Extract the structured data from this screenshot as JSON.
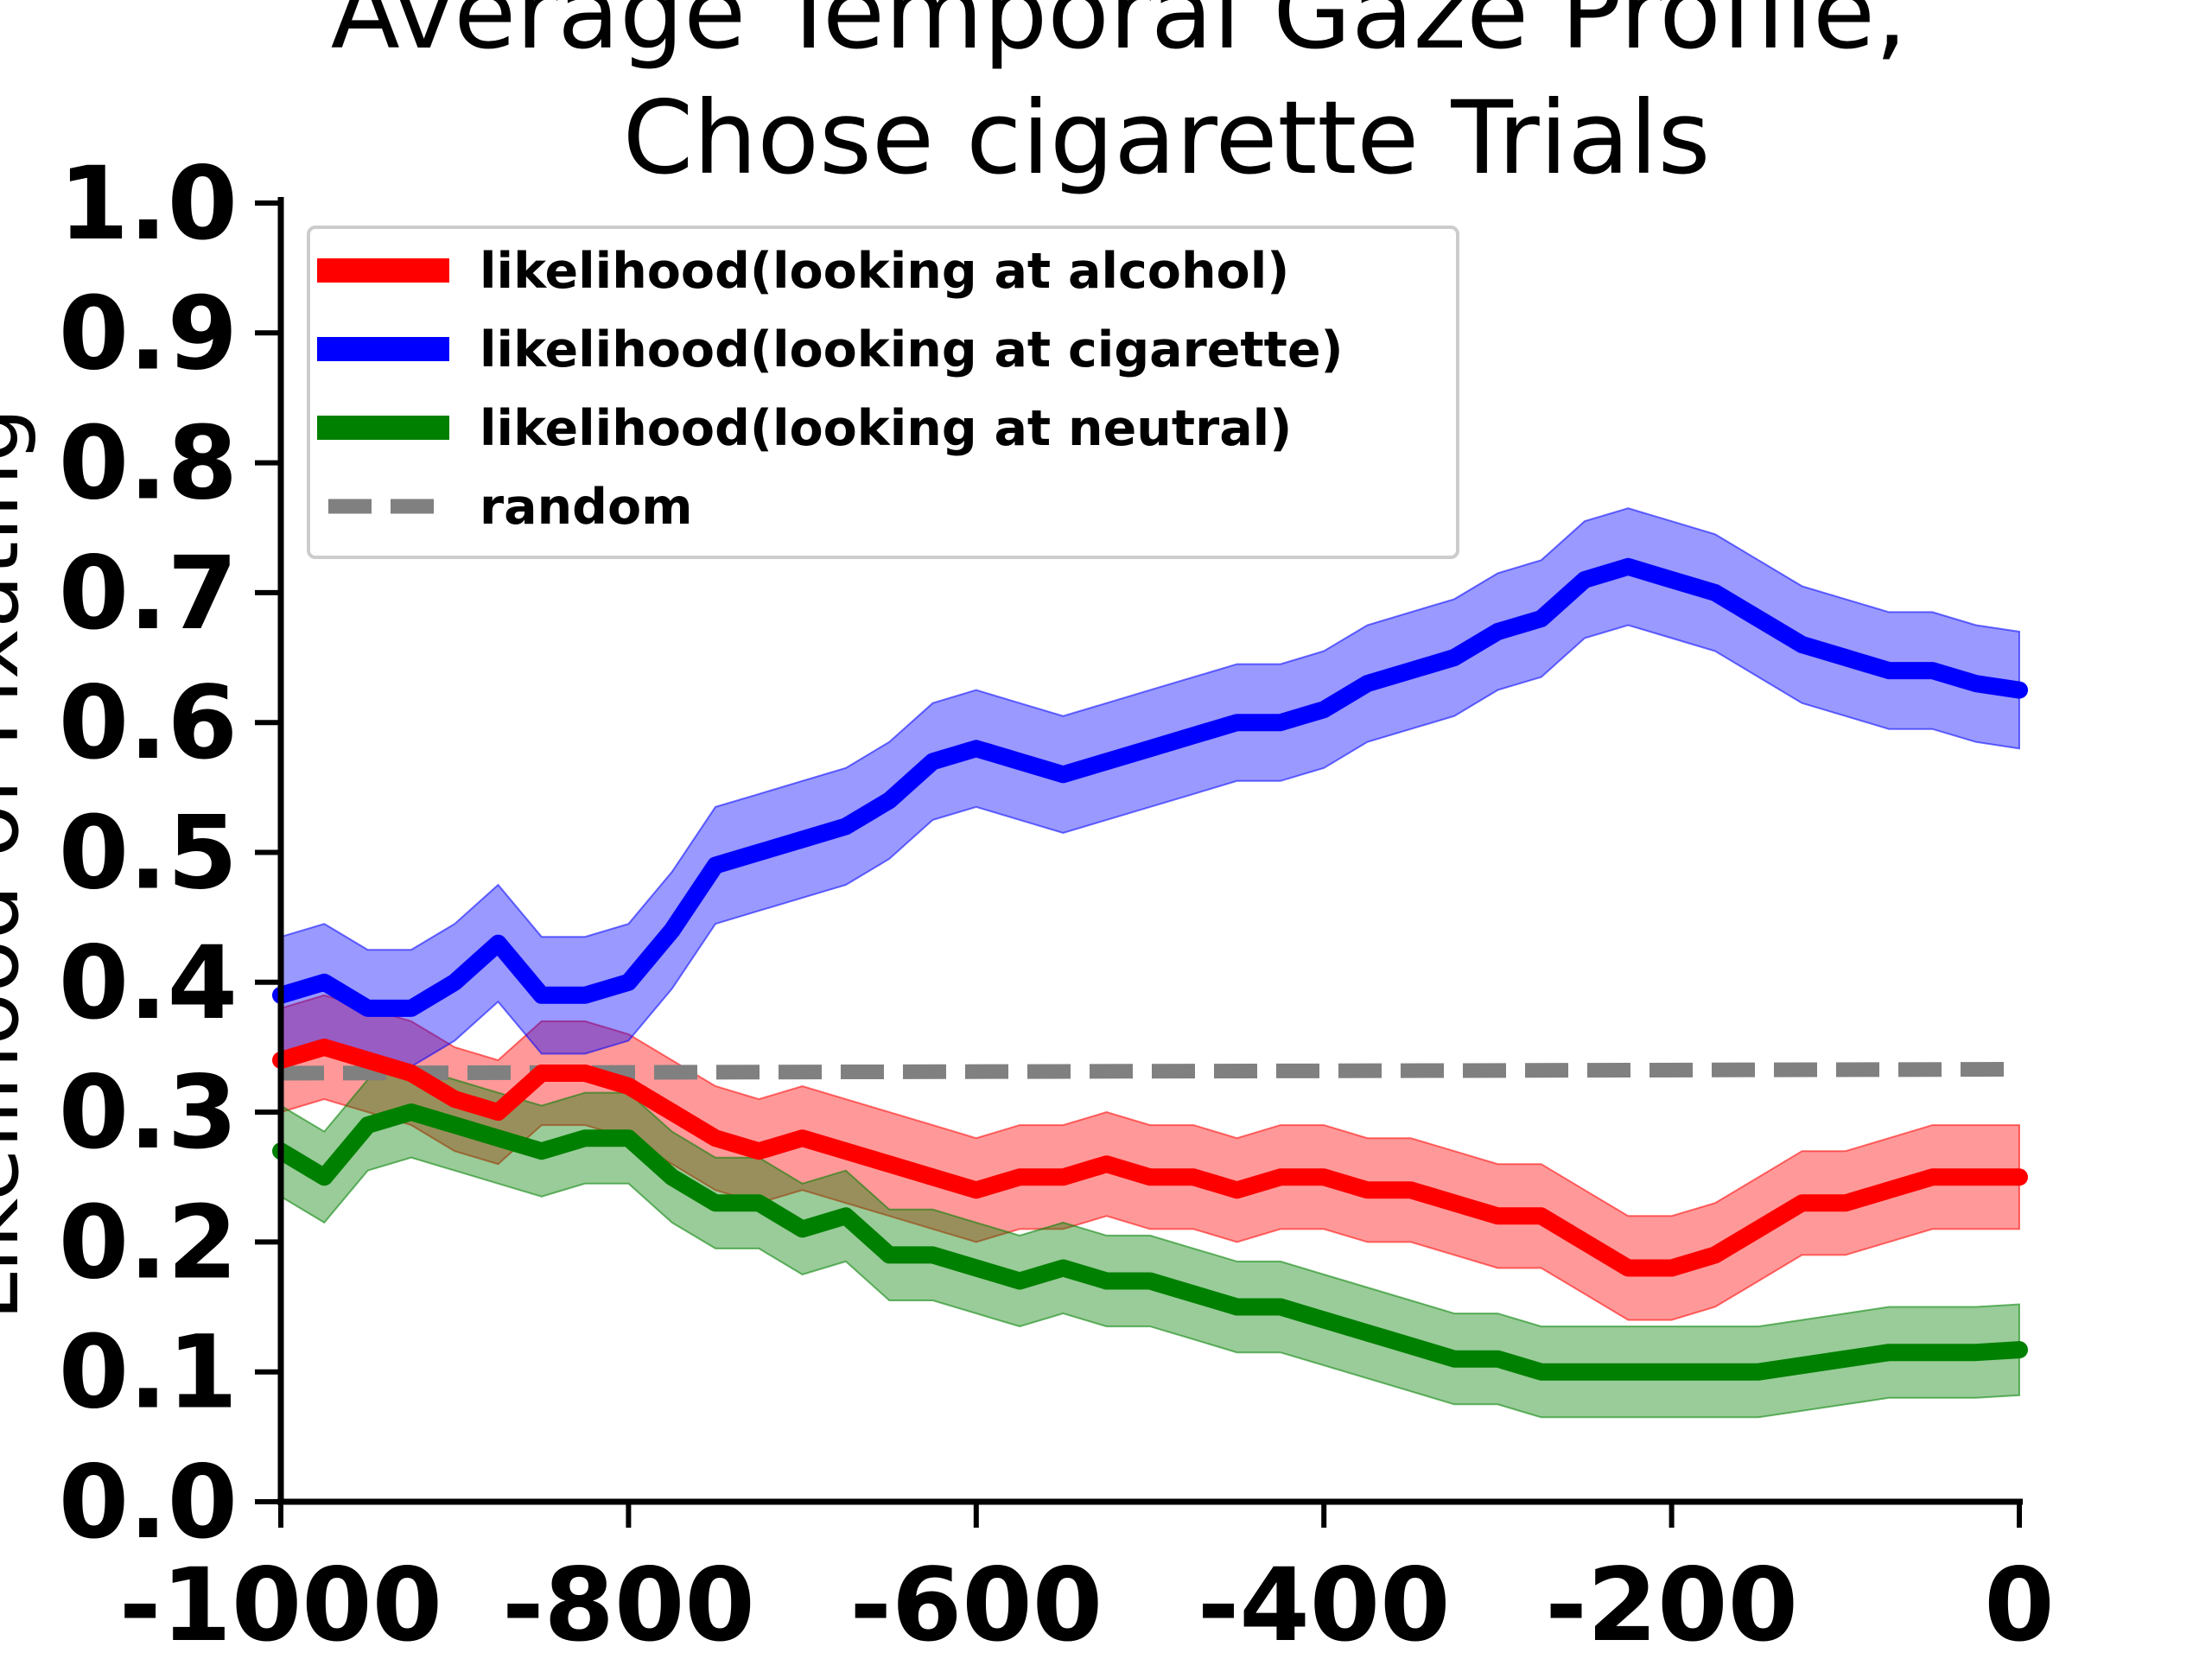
{
  "chart_data": {
    "type": "line",
    "title_line1": "Average Temporal Gaze Profile,",
    "title_line2": "Chose cigarette Trials",
    "xlabel": "",
    "ylabel": "Likelihood of Fixating",
    "xlim": [
      -1000,
      0
    ],
    "ylim": [
      0,
      1.0
    ],
    "x_ticks": [
      "-1000",
      "-800",
      "-600",
      "-400",
      "-200",
      "0"
    ],
    "x_tick_values": [
      -1000,
      -800,
      -600,
      -400,
      -200,
      0
    ],
    "y_ticks": [
      "0.0",
      "0.1",
      "0.2",
      "0.3",
      "0.4",
      "0.5",
      "0.6",
      "0.7",
      "0.8",
      "0.9",
      "1.0"
    ],
    "y_tick_values": [
      0.0,
      0.1,
      0.2,
      0.3,
      0.4,
      0.5,
      0.6,
      0.7,
      0.8,
      0.9,
      1.0
    ],
    "grid": false,
    "legend_position": "top-left",
    "x": [
      -1000,
      -975,
      -950,
      -925,
      -900,
      -875,
      -850,
      -825,
      -800,
      -775,
      -750,
      -725,
      -700,
      -675,
      -650,
      -625,
      -600,
      -575,
      -550,
      -525,
      -500,
      -475,
      -450,
      -425,
      -400,
      -375,
      -350,
      -325,
      -300,
      -275,
      -250,
      -225,
      -200,
      -175,
      -150,
      -125,
      -100,
      -75,
      -50,
      -25,
      0
    ],
    "series": [
      {
        "name": "likelihood(looking at alcohol)",
        "color": "#ff0000",
        "values": [
          0.34,
          0.35,
          0.34,
          0.33,
          0.31,
          0.3,
          0.33,
          0.33,
          0.32,
          0.3,
          0.28,
          0.27,
          0.28,
          0.27,
          0.26,
          0.25,
          0.24,
          0.25,
          0.25,
          0.26,
          0.25,
          0.25,
          0.24,
          0.25,
          0.25,
          0.24,
          0.24,
          0.23,
          0.22,
          0.22,
          0.2,
          0.18,
          0.18,
          0.19,
          0.21,
          0.23,
          0.23,
          0.24,
          0.25,
          0.25,
          0.25
        ],
        "band": [
          0.04,
          0.04,
          0.04,
          0.04,
          0.04,
          0.04,
          0.04,
          0.04,
          0.04,
          0.04,
          0.04,
          0.04,
          0.04,
          0.04,
          0.04,
          0.04,
          0.04,
          0.04,
          0.04,
          0.04,
          0.04,
          0.04,
          0.04,
          0.04,
          0.04,
          0.04,
          0.04,
          0.04,
          0.04,
          0.04,
          0.04,
          0.04,
          0.04,
          0.04,
          0.04,
          0.04,
          0.04,
          0.04,
          0.04,
          0.04,
          0.04
        ]
      },
      {
        "name": "likelihood(looking at cigarette)",
        "color": "#0000ff",
        "values": [
          0.39,
          0.4,
          0.38,
          0.38,
          0.4,
          0.43,
          0.39,
          0.39,
          0.4,
          0.44,
          0.49,
          0.5,
          0.51,
          0.52,
          0.54,
          0.57,
          0.58,
          0.57,
          0.56,
          0.57,
          0.58,
          0.59,
          0.6,
          0.6,
          0.61,
          0.63,
          0.64,
          0.65,
          0.67,
          0.68,
          0.71,
          0.72,
          0.71,
          0.7,
          0.68,
          0.66,
          0.65,
          0.64,
          0.64,
          0.63,
          0.625
        ],
        "band": [
          0.045,
          0.045,
          0.045,
          0.045,
          0.045,
          0.045,
          0.045,
          0.045,
          0.045,
          0.045,
          0.045,
          0.045,
          0.045,
          0.045,
          0.045,
          0.045,
          0.045,
          0.045,
          0.045,
          0.045,
          0.045,
          0.045,
          0.045,
          0.045,
          0.045,
          0.045,
          0.045,
          0.045,
          0.045,
          0.045,
          0.045,
          0.045,
          0.045,
          0.045,
          0.045,
          0.045,
          0.045,
          0.045,
          0.045,
          0.045,
          0.045
        ]
      },
      {
        "name": "likelihood(looking at neutral)",
        "color": "#008000",
        "values": [
          0.27,
          0.25,
          0.29,
          0.3,
          0.29,
          0.28,
          0.27,
          0.28,
          0.28,
          0.25,
          0.23,
          0.23,
          0.21,
          0.22,
          0.19,
          0.19,
          0.18,
          0.17,
          0.18,
          0.17,
          0.17,
          0.16,
          0.15,
          0.15,
          0.14,
          0.13,
          0.12,
          0.11,
          0.11,
          0.1,
          0.1,
          0.1,
          0.1,
          0.1,
          0.1,
          0.105,
          0.11,
          0.115,
          0.115,
          0.115,
          0.117
        ],
        "band": [
          0.035,
          0.035,
          0.035,
          0.035,
          0.035,
          0.035,
          0.035,
          0.035,
          0.035,
          0.035,
          0.035,
          0.035,
          0.035,
          0.035,
          0.035,
          0.035,
          0.035,
          0.035,
          0.035,
          0.035,
          0.035,
          0.035,
          0.035,
          0.035,
          0.035,
          0.035,
          0.035,
          0.035,
          0.035,
          0.035,
          0.035,
          0.035,
          0.035,
          0.035,
          0.035,
          0.035,
          0.035,
          0.035,
          0.035,
          0.035,
          0.035
        ]
      }
    ],
    "reference_line": {
      "name": "random",
      "color": "#808080",
      "style": "dashed",
      "start": [
        -1000,
        0.33
      ],
      "end": [
        0,
        0.333
      ]
    }
  }
}
